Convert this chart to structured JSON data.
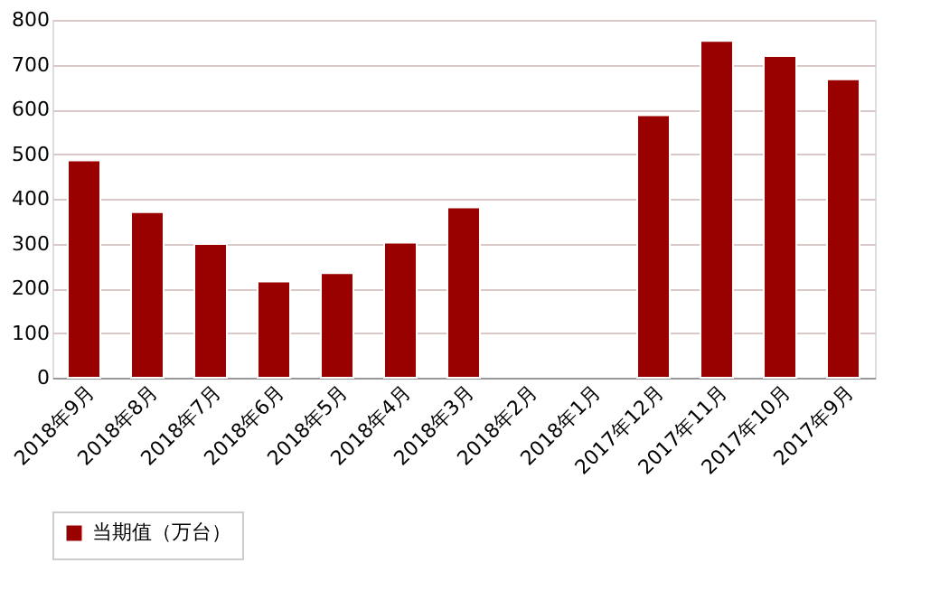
{
  "chart_data": {
    "type": "bar",
    "categories": [
      "2018年9月",
      "2018年8月",
      "2018年7月",
      "2018年6月",
      "2018年5月",
      "2018年4月",
      "2018年3月",
      "2018年2月",
      "2018年1月",
      "2017年12月",
      "2017年11月",
      "2017年10月",
      "2017年9月"
    ],
    "series": [
      {
        "name": "当期值（万台）",
        "color": "#990000",
        "values": [
          486,
          370,
          299,
          215,
          234,
          302,
          381,
          null,
          null,
          587,
          753,
          719,
          667
        ]
      }
    ],
    "ylim": [
      0,
      800
    ],
    "yticks": [
      0,
      100,
      200,
      300,
      400,
      500,
      600,
      700,
      800
    ],
    "grid": "y",
    "legend": "bottom"
  }
}
